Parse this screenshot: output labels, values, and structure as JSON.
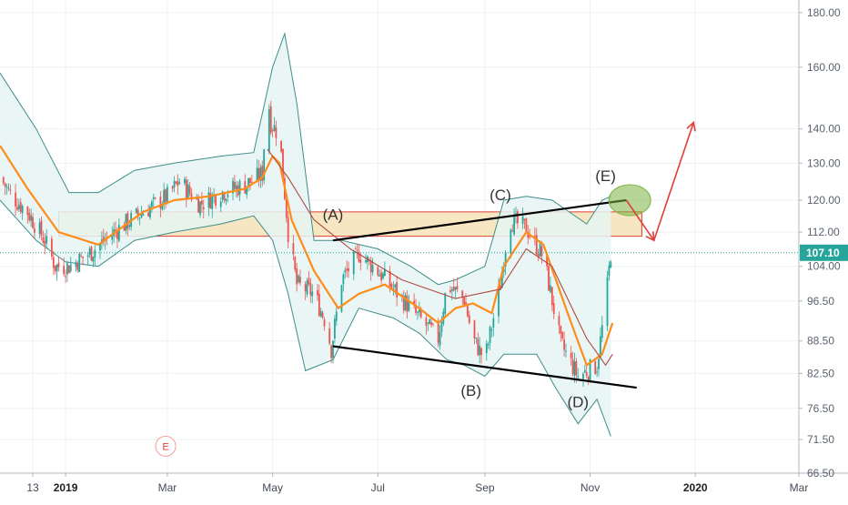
{
  "chart_data": {
    "type": "line",
    "subtype": "candlestick",
    "y_scale": "log",
    "ylim": [
      66.5,
      185
    ],
    "y_ticks": [
      "180.00",
      "160.00",
      "140.00",
      "130.00",
      "120.00",
      "112.00",
      "104.00",
      "96.50",
      "88.50",
      "82.50",
      "76.50",
      "71.50",
      "66.50"
    ],
    "y_tick_values": [
      180,
      160,
      140,
      130,
      120,
      112,
      104,
      96.5,
      88.5,
      82.5,
      76.5,
      71.5,
      66.5
    ],
    "x_ticks": [
      {
        "label": "13",
        "date": "2018-12-13",
        "bold": false
      },
      {
        "label": "2019",
        "date": "2019-01-01",
        "bold": true
      },
      {
        "label": "Mar",
        "date": "2019-03-01",
        "bold": false
      },
      {
        "label": "May",
        "date": "2019-05-01",
        "bold": false
      },
      {
        "label": "Jul",
        "date": "2019-07-01",
        "bold": false
      },
      {
        "label": "Sep",
        "date": "2019-09-01",
        "bold": false
      },
      {
        "label": "Nov",
        "date": "2019-11-01",
        "bold": false
      },
      {
        "label": "2020",
        "date": "2020-01-01",
        "bold": true
      },
      {
        "label": "Mar",
        "date": "2020-03-01",
        "bold": false
      }
    ],
    "xlim": [
      "2018-11-24",
      "2020-03-01"
    ],
    "last_price": {
      "label": "107.10",
      "value": 107.1,
      "color": "#26a69a"
    },
    "colors": {
      "up": "#26a69a",
      "down": "#ef5350",
      "fast_ma": "#ff8c1a",
      "slow_ma": "#b3493f",
      "band_line": "#3e8e8a",
      "band_fill": "#e5f4f3",
      "zone_fill": "#f6e3bb",
      "zone_border": "#e0403a",
      "trendline": "#000000",
      "arrow": "#e0403a",
      "highlight": "#7cb342"
    },
    "price_path": [
      [
        "2018-11-24",
        126
      ],
      [
        "2018-12-01",
        121
      ],
      [
        "2018-12-10",
        117
      ],
      [
        "2018-12-20",
        110
      ],
      [
        "2018-12-26",
        104
      ],
      [
        "2019-01-03",
        104
      ],
      [
        "2019-01-15",
        107
      ],
      [
        "2019-02-01",
        113
      ],
      [
        "2019-02-15",
        117
      ],
      [
        "2019-03-01",
        121
      ],
      [
        "2019-03-08",
        125
      ],
      [
        "2019-03-20",
        119
      ],
      [
        "2019-04-01",
        122
      ],
      [
        "2019-04-15",
        124
      ],
      [
        "2019-04-25",
        127
      ],
      [
        "2019-04-28",
        152
      ],
      [
        "2019-04-30",
        142
      ],
      [
        "2019-05-05",
        138
      ],
      [
        "2019-05-10",
        112
      ],
      [
        "2019-05-15",
        100
      ],
      [
        "2019-05-25",
        98
      ],
      [
        "2019-06-01",
        92
      ],
      [
        "2019-06-04",
        87
      ],
      [
        "2019-06-10",
        101
      ],
      [
        "2019-06-20",
        107
      ],
      [
        "2019-07-01",
        103
      ],
      [
        "2019-07-15",
        97
      ],
      [
        "2019-07-25",
        93
      ],
      [
        "2019-08-05",
        89
      ],
      [
        "2019-08-10",
        100
      ],
      [
        "2019-08-20",
        97
      ],
      [
        "2019-08-25",
        89
      ],
      [
        "2019-09-01",
        85
      ],
      [
        "2019-09-10",
        100
      ],
      [
        "2019-09-15",
        115
      ],
      [
        "2019-09-25",
        113
      ],
      [
        "2019-10-05",
        106
      ],
      [
        "2019-10-15",
        88
      ],
      [
        "2019-10-25",
        82
      ],
      [
        "2019-11-05",
        84
      ],
      [
        "2019-11-10",
        96
      ],
      [
        "2019-11-13",
        107.1
      ]
    ],
    "moving_averages": [
      {
        "name": "fast",
        "points": [
          [
            "2018-11-24",
            135
          ],
          [
            "2018-12-10",
            123
          ],
          [
            "2018-12-28",
            112
          ],
          [
            "2019-01-20",
            109
          ],
          [
            "2019-02-15",
            117
          ],
          [
            "2019-03-05",
            120
          ],
          [
            "2019-03-25",
            121
          ],
          [
            "2019-04-15",
            123
          ],
          [
            "2019-04-25",
            126
          ],
          [
            "2019-05-01",
            132
          ],
          [
            "2019-05-05",
            130
          ],
          [
            "2019-05-12",
            115
          ],
          [
            "2019-05-25",
            103
          ],
          [
            "2019-06-08",
            95
          ],
          [
            "2019-06-20",
            98
          ],
          [
            "2019-07-05",
            100
          ],
          [
            "2019-07-25",
            95
          ],
          [
            "2019-08-05",
            92
          ],
          [
            "2019-08-15",
            95
          ],
          [
            "2019-08-25",
            96
          ],
          [
            "2019-09-05",
            94
          ],
          [
            "2019-09-12",
            104
          ],
          [
            "2019-09-25",
            112
          ],
          [
            "2019-10-05",
            109
          ],
          [
            "2019-10-20",
            93
          ],
          [
            "2019-10-30",
            84
          ],
          [
            "2019-11-08",
            86
          ],
          [
            "2019-11-14",
            92
          ]
        ]
      },
      {
        "name": "slow",
        "points": [
          [
            "2019-04-28",
            134
          ],
          [
            "2019-05-10",
            126
          ],
          [
            "2019-05-25",
            115
          ],
          [
            "2019-06-15",
            108
          ],
          [
            "2019-07-15",
            101
          ],
          [
            "2019-08-15",
            97
          ],
          [
            "2019-09-10",
            99
          ],
          [
            "2019-09-25",
            108
          ],
          [
            "2019-10-10",
            104
          ],
          [
            "2019-10-30",
            89
          ],
          [
            "2019-11-10",
            84
          ],
          [
            "2019-11-14",
            86
          ]
        ]
      }
    ],
    "bollinger_bands": {
      "upper": [
        [
          "2018-11-24",
          158
        ],
        [
          "2018-12-15",
          140
        ],
        [
          "2019-01-03",
          122
        ],
        [
          "2019-01-20",
          122
        ],
        [
          "2019-02-10",
          128
        ],
        [
          "2019-03-05",
          130
        ],
        [
          "2019-04-01",
          132
        ],
        [
          "2019-04-20",
          133
        ],
        [
          "2019-05-01",
          160
        ],
        [
          "2019-05-08",
          172
        ],
        [
          "2019-05-15",
          148
        ],
        [
          "2019-05-25",
          110
        ],
        [
          "2019-06-10",
          110
        ],
        [
          "2019-07-01",
          108
        ],
        [
          "2019-07-20",
          104
        ],
        [
          "2019-08-05",
          100
        ],
        [
          "2019-08-15",
          101
        ],
        [
          "2019-09-01",
          104
        ],
        [
          "2019-09-12",
          120
        ],
        [
          "2019-09-25",
          121
        ],
        [
          "2019-10-10",
          120
        ],
        [
          "2019-10-30",
          114
        ],
        [
          "2019-11-08",
          120
        ],
        [
          "2019-11-13",
          121
        ]
      ],
      "lower": [
        [
          "2018-11-24",
          120
        ],
        [
          "2018-12-15",
          110
        ],
        [
          "2019-01-01",
          105
        ],
        [
          "2019-01-20",
          104
        ],
        [
          "2019-02-10",
          110
        ],
        [
          "2019-03-05",
          112
        ],
        [
          "2019-04-01",
          114
        ],
        [
          "2019-04-20",
          116
        ],
        [
          "2019-05-01",
          110
        ],
        [
          "2019-05-10",
          98
        ],
        [
          "2019-05-20",
          83
        ],
        [
          "2019-06-05",
          85
        ],
        [
          "2019-06-20",
          95
        ],
        [
          "2019-07-10",
          93
        ],
        [
          "2019-07-25",
          90
        ],
        [
          "2019-08-10",
          85
        ],
        [
          "2019-08-20",
          84
        ],
        [
          "2019-09-01",
          82
        ],
        [
          "2019-09-12",
          86
        ],
        [
          "2019-10-01",
          86
        ],
        [
          "2019-10-12",
          80
        ],
        [
          "2019-10-25",
          74
        ],
        [
          "2019-11-05",
          78
        ],
        [
          "2019-11-13",
          72
        ]
      ]
    },
    "annotations": {
      "wave_labels": [
        {
          "text": "(A)",
          "date": "2019-06-05",
          "value": 115
        },
        {
          "text": "(B)",
          "date": "2019-08-24",
          "value": 78.6
        },
        {
          "text": "(C)",
          "date": "2019-09-10",
          "value": 120
        },
        {
          "text": "(D)",
          "date": "2019-10-25",
          "value": 76.7
        },
        {
          "text": "(E)",
          "date": "2019-11-10",
          "value": 125
        }
      ],
      "resistance_zone": {
        "from": "2018-12-28",
        "to": "2019-12-01",
        "top": 117,
        "bottom": 111
      },
      "trendlines": [
        {
          "from": {
            "date": "2019-06-05",
            "value": 110
          },
          "to": {
            "date": "2019-11-22",
            "value": 120
          }
        },
        {
          "from": {
            "date": "2019-06-05",
            "value": 87.5
          },
          "to": {
            "date": "2019-11-28",
            "value": 80
          }
        }
      ],
      "projection_arrows": [
        [
          {
            "date": "2019-11-22",
            "value": 120
          },
          {
            "date": "2019-12-08",
            "value": 110
          }
        ],
        [
          {
            "date": "2019-12-08",
            "value": 110
          },
          {
            "date": "2019-12-31",
            "value": 142
          }
        ]
      ],
      "highlight_ellipse": {
        "date": "2019-11-24",
        "value": 120
      },
      "event_marker": {
        "text": "E",
        "date": "2019-02-28",
        "value": 70.5
      }
    }
  }
}
